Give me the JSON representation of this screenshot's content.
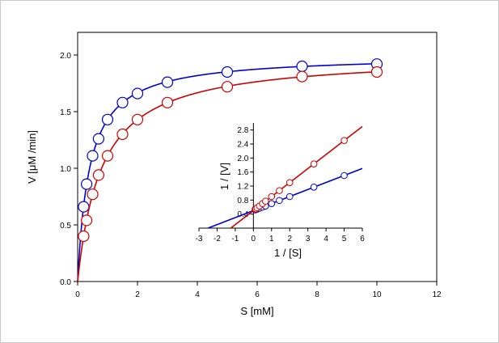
{
  "chart_data": [
    {
      "type": "scatter",
      "xlabel": "S [mM]",
      "ylabel": "V [μM /min]",
      "xlim": [
        0,
        12
      ],
      "ylim": [
        0,
        2.2
      ],
      "xticks": [
        "0",
        "2",
        "4",
        "6",
        "8",
        "10",
        "12"
      ],
      "yticks": [
        "0.0",
        "0.5",
        "1.0",
        "1.5",
        "2.0"
      ],
      "grid": false,
      "series": [
        {
          "color": "#0000cc",
          "x": [
            0.2,
            0.3,
            0.5,
            0.7,
            1.0,
            1.5,
            2.0,
            3.0,
            5.0,
            7.5,
            10.0
          ],
          "y": [
            0.66,
            0.86,
            1.11,
            1.26,
            1.43,
            1.58,
            1.66,
            1.76,
            1.85,
            1.9,
            1.92
          ],
          "fit": {
            "vmax": 2.0,
            "km": 0.4
          }
        },
        {
          "color": "#cc0000",
          "x": [
            0.2,
            0.3,
            0.5,
            0.7,
            1.0,
            1.5,
            2.0,
            3.0,
            5.0,
            7.5,
            10.0
          ],
          "y": [
            0.4,
            0.54,
            0.77,
            0.94,
            1.11,
            1.3,
            1.43,
            1.58,
            1.72,
            1.81,
            1.85
          ],
          "fit": {
            "vmax": 2.0,
            "km": 0.8
          }
        }
      ]
    },
    {
      "type": "scatter",
      "xlabel": "1 / [S]",
      "ylabel": "1 / [V]",
      "xlim": [
        -3,
        6
      ],
      "ylim": [
        0,
        3.0
      ],
      "xticks": [
        "-3",
        "-2",
        "-1",
        "0",
        "1",
        "2",
        "3",
        "4",
        "5",
        "6"
      ],
      "yticks": [
        "0.4",
        "0.8",
        "1.2",
        "1.6",
        "2.0",
        "2.4",
        "2.8"
      ],
      "grid": false,
      "series": [
        {
          "color": "#0000cc",
          "x": [
            0.1,
            0.133,
            0.2,
            0.333,
            0.5,
            0.667,
            1.0,
            1.429,
            2.0,
            3.333,
            5.0
          ],
          "y": [
            0.52,
            0.53,
            0.54,
            0.57,
            0.6,
            0.63,
            0.7,
            0.79,
            0.9,
            1.17,
            1.5
          ],
          "line": {
            "x0": -2.5,
            "x1": 9.6
          }
        },
        {
          "color": "#cc0000",
          "x": [
            0.1,
            0.133,
            0.2,
            0.333,
            0.5,
            0.667,
            1.0,
            1.429,
            2.0,
            3.333,
            5.0
          ],
          "y": [
            0.54,
            0.55,
            0.58,
            0.63,
            0.7,
            0.77,
            0.9,
            1.07,
            1.3,
            1.83,
            2.5
          ],
          "line": {
            "x0": -1.25,
            "x1": 9.6
          }
        }
      ]
    }
  ]
}
